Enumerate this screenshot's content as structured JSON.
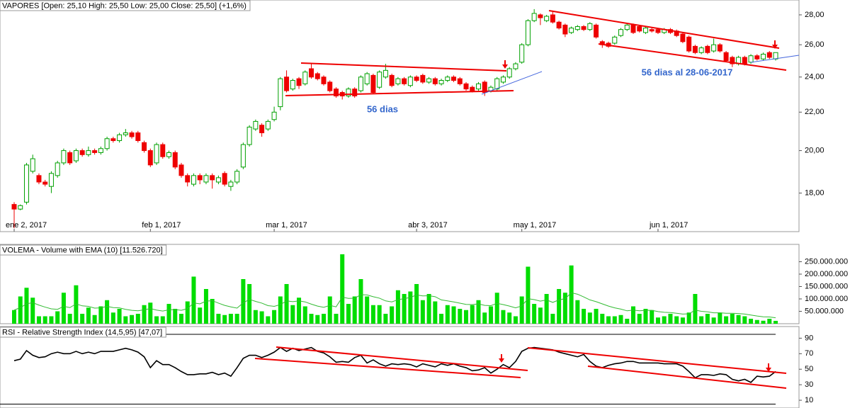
{
  "chart_data": [
    {
      "type": "candlestick",
      "title": "VAPORES [Open: 25,10  High: 25,50  Low: 25,00  Close: 25,50] (+1,6%)",
      "annotations": [
        "56 dias",
        "56 dias al 28-06-2017"
      ],
      "log_scale": true,
      "up_color": "#00a000",
      "down_color": "#ee0000",
      "ylim": [
        16.36,
        29.05
      ],
      "yticks": [
        {
          "value": 18,
          "label": "18,00"
        },
        {
          "value": 20,
          "label": "20,00"
        },
        {
          "value": 22,
          "label": "22,00"
        },
        {
          "value": 24,
          "label": "24,00"
        },
        {
          "value": 26,
          "label": "26,00"
        },
        {
          "value": 28,
          "label": "28,00"
        }
      ],
      "categories": [
        "ene 2, 2017",
        null,
        null,
        null,
        null,
        null,
        null,
        null,
        null,
        null,
        null,
        null,
        null,
        null,
        null,
        null,
        null,
        null,
        null,
        null,
        null,
        null,
        "feb 1, 2017",
        null,
        null,
        null,
        null,
        null,
        null,
        null,
        null,
        null,
        null,
        null,
        null,
        null,
        null,
        null,
        null,
        null,
        null,
        null,
        "mar 1, 2017",
        null,
        null,
        null,
        null,
        null,
        null,
        null,
        null,
        null,
        null,
        null,
        null,
        null,
        null,
        null,
        null,
        null,
        null,
        null,
        null,
        null,
        null,
        "abr 3, 2017",
        null,
        null,
        null,
        null,
        null,
        null,
        null,
        null,
        null,
        null,
        null,
        null,
        null,
        null,
        null,
        null,
        "may 1, 2017",
        null,
        null,
        null,
        null,
        null,
        null,
        null,
        null,
        null,
        null,
        null,
        null,
        null,
        null,
        null,
        null,
        null,
        null,
        null,
        null,
        null,
        "jun 1, 2017",
        null,
        null,
        null,
        null,
        null,
        null,
        null,
        null,
        null,
        null,
        null,
        null,
        null,
        null,
        null,
        null,
        null,
        null,
        null
      ],
      "open": [
        17.5,
        17.3,
        17.6,
        19.0,
        18.8,
        18.5,
        18.3,
        18.8,
        19.4,
        19.9,
        19.5,
        20.0,
        19.8,
        20.0,
        19.9,
        20.1,
        20.6,
        20.5,
        20.8,
        20.9,
        20.9,
        20.4,
        20.0,
        19.4,
        20.3,
        19.7,
        19.9,
        19.3,
        18.8,
        18.4,
        18.8,
        18.5,
        18.8,
        18.5,
        18.9,
        18.3,
        18.5,
        19.2,
        20.3,
        21.1,
        21.3,
        21.1,
        21.6,
        22.3,
        24.0,
        23.3,
        23.9,
        23.6,
        24.5,
        24.2,
        24.0,
        23.7,
        23.3,
        23.1,
        22.9,
        23.3,
        23.2,
        23.6,
        24.1,
        23.4,
        24.0,
        24.1,
        23.6,
        23.9,
        23.5,
        24.0,
        24.1,
        23.7,
        23.9,
        23.6,
        23.8,
        24.0,
        23.9,
        23.6,
        23.4,
        23.3,
        23.7,
        23.2,
        23.3,
        23.7,
        24.0,
        24.5,
        24.9,
        26.0,
        27.6,
        28.0,
        27.6,
        28.0,
        27.5,
        27.3,
        26.8,
        27.0,
        27.2,
        27.0,
        27.3,
        26.2,
        26.1,
        26.1,
        26.6,
        27.0,
        27.3,
        27.2,
        26.8,
        27.0,
        27.0,
        26.8,
        27.0,
        26.9,
        26.7,
        26.5,
        25.9,
        25.5,
        25.9,
        25.6,
        26.0,
        25.5,
        25.2,
        24.8,
        25.2,
        24.9,
        25.3,
        25.1,
        25.5,
        25.1
      ],
      "high": [
        17.6,
        17.5,
        19.4,
        19.8,
        18.9,
        18.6,
        19.0,
        19.5,
        20.1,
        20.0,
        20.1,
        20.1,
        20.2,
        20.1,
        20.2,
        20.7,
        20.7,
        20.9,
        21.1,
        21.0,
        21.0,
        20.5,
        20.1,
        20.4,
        20.4,
        20.0,
        20.0,
        19.4,
        18.9,
        18.9,
        18.9,
        18.9,
        18.9,
        18.8,
        19.0,
        18.6,
        19.1,
        20.4,
        21.3,
        21.6,
        21.4,
        21.6,
        22.3,
        24.0,
        24.4,
        23.9,
        24.0,
        24.4,
        24.8,
        24.3,
        24.1,
        23.8,
        23.4,
        23.2,
        23.4,
        23.4,
        24.1,
        24.3,
        24.2,
        24.4,
        24.8,
        24.2,
        24.0,
        24.0,
        24.1,
        24.1,
        24.2,
        24.0,
        24.0,
        23.9,
        24.1,
        24.1,
        24.0,
        23.7,
        23.5,
        23.7,
        23.8,
        23.5,
        24.0,
        24.1,
        24.6,
        24.9,
        26.1,
        27.7,
        28.4,
        28.1,
        28.0,
        28.3,
        27.6,
        27.4,
        27.2,
        27.3,
        27.3,
        27.5,
        27.4,
        26.3,
        26.2,
        26.6,
        27.1,
        27.4,
        27.4,
        27.3,
        27.2,
        27.1,
        27.1,
        27.1,
        27.1,
        27.0,
        26.8,
        26.6,
        26.0,
        25.9,
        26.0,
        26.4,
        26.1,
        25.6,
        25.3,
        25.3,
        25.3,
        25.4,
        25.4,
        25.5,
        25.6,
        25.5
      ],
      "low": [
        16.5,
        17.25,
        17.5,
        18.9,
        18.4,
        18.3,
        18.0,
        18.7,
        19.3,
        19.3,
        19.4,
        19.7,
        19.7,
        19.8,
        19.8,
        20.0,
        20.4,
        20.4,
        20.7,
        20.6,
        20.4,
        19.9,
        19.2,
        19.3,
        19.6,
        19.6,
        19.1,
        18.7,
        18.3,
        18.3,
        18.4,
        18.4,
        18.2,
        18.4,
        18.3,
        18.1,
        18.4,
        19.1,
        20.2,
        21.0,
        20.7,
        21.0,
        21.5,
        22.1,
        23.1,
        23.2,
        23.3,
        23.5,
        23.9,
        23.8,
        23.5,
        23.1,
        22.8,
        22.7,
        22.8,
        22.8,
        23.1,
        23.5,
        23.0,
        23.3,
        23.9,
        23.4,
        23.5,
        23.5,
        23.4,
        23.7,
        23.6,
        23.6,
        23.5,
        23.5,
        23.7,
        23.7,
        23.5,
        23.2,
        23.1,
        23.2,
        22.9,
        23.1,
        23.2,
        23.6,
        23.9,
        24.4,
        24.8,
        25.9,
        27.5,
        27.3,
        27.5,
        27.4,
        27.0,
        26.5,
        26.7,
        26.9,
        26.9,
        26.9,
        26.4,
        25.8,
        25.8,
        26.0,
        26.5,
        26.9,
        26.7,
        26.8,
        26.7,
        26.8,
        26.7,
        26.7,
        26.7,
        26.5,
        26.1,
        25.5,
        25.4,
        25.4,
        25.4,
        25.5,
        25.5,
        24.9,
        24.6,
        24.7,
        24.7,
        24.8,
        25.0,
        25.0,
        25.1,
        25.0
      ],
      "close": [
        17.3,
        17.45,
        19.3,
        19.6,
        18.5,
        18.4,
        18.9,
        19.4,
        20.0,
        19.4,
        20.0,
        19.8,
        20.0,
        19.9,
        20.1,
        20.6,
        20.5,
        20.8,
        20.9,
        20.7,
        20.5,
        20.0,
        19.3,
        20.3,
        19.7,
        19.9,
        19.2,
        18.8,
        18.5,
        18.8,
        18.6,
        18.8,
        18.6,
        18.7,
        18.4,
        18.5,
        19.0,
        20.3,
        21.2,
        21.5,
        20.9,
        21.5,
        22.0,
        23.9,
        23.2,
        23.8,
        23.5,
        24.3,
        24.0,
        23.9,
        23.6,
        23.2,
        22.9,
        22.9,
        23.3,
        22.9,
        24.0,
        24.2,
        23.1,
        24.3,
        24.4,
        23.5,
        23.9,
        23.6,
        24.0,
        23.8,
        23.7,
        23.9,
        23.6,
        23.8,
        24.0,
        23.8,
        23.6,
        23.3,
        23.2,
        23.6,
        23.1,
        23.4,
        23.9,
        24.0,
        24.5,
        24.8,
        26.0,
        27.6,
        28.1,
        27.8,
        27.9,
        27.5,
        27.1,
        26.7,
        27.1,
        27.2,
        27.0,
        27.4,
        26.5,
        26.0,
        25.9,
        26.5,
        27.0,
        27.3,
        26.8,
        26.9,
        27.1,
        26.9,
        26.8,
        27.0,
        26.8,
        26.6,
        26.2,
        25.6,
        25.5,
        25.8,
        25.5,
        26.0,
        25.6,
        25.0,
        24.8,
        25.2,
        24.8,
        25.3,
        25.1,
        25.4,
        25.2,
        25.5
      ]
    },
    {
      "type": "bar",
      "title": "VOLEMA - Volume with EMA (10) [11.526.720]",
      "ylim": [
        0,
        320000000
      ],
      "yticks": [
        {
          "value": 50000000,
          "label": "50.000.000"
        },
        {
          "value": 100000000,
          "label": "100.000.000"
        },
        {
          "value": 150000000,
          "label": "150.000.000"
        },
        {
          "value": 200000000,
          "label": "200.000.000"
        },
        {
          "value": 250000000,
          "label": "250.000.000"
        }
      ],
      "series": [
        {
          "color": "#00dd00",
          "values": [
            55000000,
            110000000,
            145000000,
            105000000,
            30000000,
            30000000,
            30000000,
            50000000,
            125000000,
            40000000,
            155000000,
            40000000,
            65000000,
            35000000,
            70000000,
            95000000,
            45000000,
            60000000,
            30000000,
            35000000,
            40000000,
            75000000,
            85000000,
            30000000,
            30000000,
            80000000,
            60000000,
            40000000,
            90000000,
            190000000,
            65000000,
            140000000,
            100000000,
            40000000,
            35000000,
            40000000,
            40000000,
            180000000,
            160000000,
            55000000,
            50000000,
            30000000,
            55000000,
            110000000,
            160000000,
            75000000,
            105000000,
            70000000,
            40000000,
            35000000,
            40000000,
            110000000,
            40000000,
            280000000,
            80000000,
            110000000,
            180000000,
            110000000,
            75000000,
            75000000,
            40000000,
            70000000,
            135000000,
            120000000,
            130000000,
            160000000,
            95000000,
            120000000,
            90000000,
            40000000,
            75000000,
            70000000,
            60000000,
            55000000,
            75000000,
            95000000,
            45000000,
            70000000,
            125000000,
            55000000,
            45000000,
            30000000,
            110000000,
            230000000,
            80000000,
            65000000,
            120000000,
            40000000,
            140000000,
            125000000,
            235000000,
            95000000,
            60000000,
            45000000,
            60000000,
            40000000,
            30000000,
            30000000,
            35000000,
            20000000,
            70000000,
            40000000,
            60000000,
            55000000,
            25000000,
            30000000,
            40000000,
            30000000,
            25000000,
            45000000,
            120000000,
            30000000,
            40000000,
            25000000,
            45000000,
            30000000,
            40000000,
            35000000,
            30000000,
            20000000,
            15000000,
            12000000,
            20000000,
            11526720
          ]
        },
        {
          "type": "line",
          "color": "#33bb33",
          "values": [
            55000000,
            65000000,
            80000000,
            85000000,
            75000000,
            67000000,
            60000000,
            58000000,
            70000000,
            65000000,
            80000000,
            72000000,
            70000000,
            63000000,
            64000000,
            70000000,
            65000000,
            64000000,
            58000000,
            54000000,
            52000000,
            56000000,
            61000000,
            55000000,
            51000000,
            56000000,
            57000000,
            54000000,
            61000000,
            84000000,
            80000000,
            91000000,
            93000000,
            83000000,
            74000000,
            68000000,
            63000000,
            84000000,
            98000000,
            90000000,
            83000000,
            73000000,
            70000000,
            77000000,
            92000000,
            89000000,
            92000000,
            88000000,
            79000000,
            71000000,
            66000000,
            74000000,
            68000000,
            107000000,
            102000000,
            103000000,
            117000000,
            116000000,
            109000000,
            103000000,
            92000000,
            88000000,
            97000000,
            101000000,
            106000000,
            116000000,
            112000000,
            113000000,
            109000000,
            96000000,
            92000000,
            88000000,
            83000000,
            78000000,
            77000000,
            80000000,
            74000000,
            73000000,
            82000000,
            77000000,
            71000000,
            64000000,
            72000000,
            101000000,
            97000000,
            91000000,
            96000000,
            86000000,
            96000000,
            101000000,
            125000000,
            119000000,
            108000000,
            96000000,
            89000000,
            80000000,
            71000000,
            64000000,
            59000000,
            52000000,
            55000000,
            52000000,
            54000000,
            54000000,
            49000000,
            46000000,
            45000000,
            42000000,
            39000000,
            40000000,
            55000000,
            50000000,
            48000000,
            44000000,
            44000000,
            42000000,
            42000000,
            41000000,
            39000000,
            35000000,
            31000000,
            28000000,
            27000000,
            24000000
          ]
        }
      ]
    },
    {
      "type": "line",
      "title": "RSI - Relative Strength Index (14,5,95) [47,07]",
      "color": "#000000",
      "ylim": [
        0,
        105
      ],
      "yticks": [
        10,
        30,
        50,
        70,
        90
      ],
      "levels": [
        5,
        95
      ],
      "values": [
        61,
        63,
        74,
        68,
        65,
        66,
        70,
        72,
        70,
        70,
        73,
        70,
        72,
        70,
        73,
        73,
        73,
        75,
        77,
        75,
        72,
        66,
        52,
        61,
        56,
        56,
        52,
        47,
        43,
        43,
        44,
        44,
        46,
        43,
        45,
        41,
        52,
        64,
        68,
        68,
        65,
        68,
        72,
        78,
        73,
        77,
        74,
        76,
        78,
        73,
        71,
        66,
        59,
        60,
        59,
        65,
        68,
        58,
        62,
        57,
        54,
        57,
        56,
        57,
        56,
        53,
        57,
        55,
        53,
        57,
        55,
        57,
        54,
        52,
        48,
        49,
        52,
        45,
        50,
        56,
        52,
        60,
        73,
        77,
        78,
        77,
        76,
        75,
        72,
        70,
        68,
        66,
        69,
        60,
        54,
        52,
        55,
        57,
        58,
        60,
        60,
        58,
        58,
        58,
        58,
        57,
        57,
        57,
        54,
        47,
        39,
        43,
        43,
        42,
        44,
        43,
        37,
        35,
        37,
        33,
        41,
        40,
        41,
        47.07
      ]
    }
  ]
}
